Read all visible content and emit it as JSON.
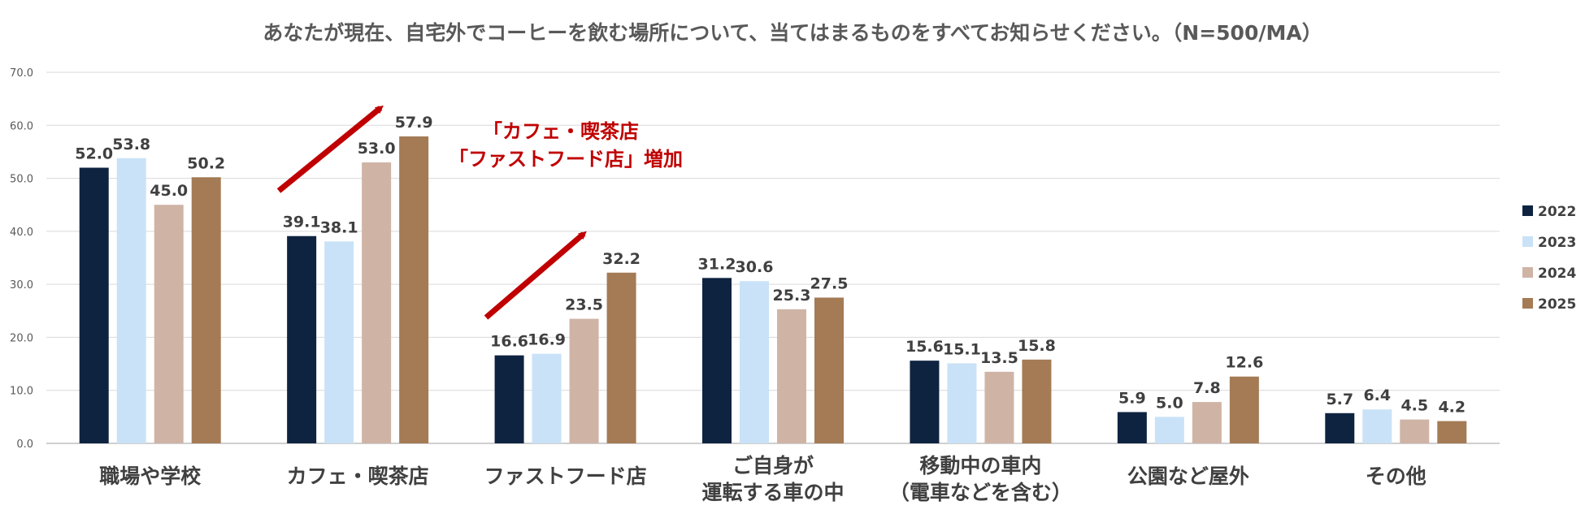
{
  "chart_data": {
    "type": "bar",
    "title": "あなたが現在、自宅外でコーヒーを飲む場所について、当てはまるものをすべてお知らせください。（N=500/MA）",
    "xlabel": "",
    "ylabel": "",
    "ylim": [
      0,
      70
    ],
    "yticks": [
      "0.0",
      "10.0",
      "20.0",
      "30.0",
      "40.0",
      "50.0",
      "60.0",
      "70.0"
    ],
    "grid": true,
    "legend_position": "right",
    "categories": [
      [
        "職場や学校"
      ],
      [
        "カフェ・喫茶店"
      ],
      [
        "ファストフード店"
      ],
      [
        "ご自身が",
        "運転する車の中"
      ],
      [
        "移動中の車内",
        "（電車などを含む）"
      ],
      [
        "公園など屋外"
      ],
      [
        "その他"
      ]
    ],
    "series": [
      {
        "name": "2022",
        "color": "#0e2340",
        "values": [
          52.0,
          39.1,
          16.6,
          31.2,
          15.6,
          5.9,
          5.7
        ],
        "labels": [
          "52.0",
          "39.1",
          "16.6",
          "31.2",
          "15.6",
          "5.9",
          "5.7"
        ]
      },
      {
        "name": "2023",
        "color": "#c9e2f7",
        "values": [
          53.8,
          38.1,
          16.9,
          30.6,
          15.1,
          5.0,
          6.4
        ],
        "labels": [
          "53.8",
          "38.1",
          "16.9",
          "30.6",
          "15.1",
          "5.0",
          "6.4"
        ]
      },
      {
        "name": "2024",
        "color": "#cfb4a6",
        "values": [
          45.0,
          53.0,
          23.5,
          25.3,
          13.5,
          7.8,
          4.5
        ],
        "labels": [
          "45.0",
          "53.0",
          "23.5",
          "25.3",
          "13.5",
          "7.8",
          "4.5"
        ]
      },
      {
        "name": "2025",
        "color": "#a47b55",
        "values": [
          50.2,
          57.9,
          32.2,
          27.5,
          15.8,
          12.6,
          4.2
        ],
        "labels": [
          "50.2",
          "57.9",
          "32.2",
          "27.5",
          "15.8",
          "12.6",
          "4.2"
        ]
      }
    ],
    "annotations": [
      {
        "lines": [
          "「カフェ・喫茶店",
          "「ファストフード店」増加"
        ],
        "color": "#c00000"
      }
    ]
  }
}
